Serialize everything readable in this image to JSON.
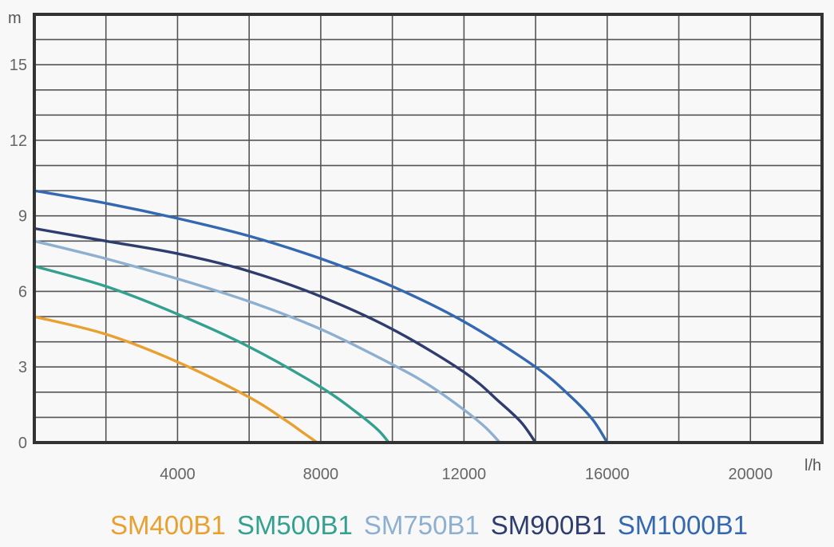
{
  "chart_data": {
    "type": "line",
    "xlabel": "l/h",
    "ylabel": "m",
    "xlim": [
      0,
      22000
    ],
    "ylim": [
      0,
      17
    ],
    "x_ticks": [
      4000,
      8000,
      12000,
      16000,
      20000
    ],
    "x_tick_labels": [
      "4000",
      "8000",
      "12000",
      "16000",
      "20000"
    ],
    "y_ticks": [
      0,
      3,
      6,
      9,
      12,
      15
    ],
    "y_tick_labels": [
      "0",
      "3",
      "6",
      "9",
      "12",
      "15"
    ],
    "grid": true,
    "legend_position": "bottom",
    "series": [
      {
        "name": "SM400B1",
        "color": "#e8a030",
        "x": [
          0,
          2000,
          4000,
          6000,
          7000,
          7500,
          7900
        ],
        "y": [
          5.0,
          4.3,
          3.2,
          1.8,
          0.9,
          0.4,
          0
        ]
      },
      {
        "name": "SM500B1",
        "color": "#34a090",
        "x": [
          0,
          2000,
          4000,
          6000,
          8000,
          9000,
          9600,
          9900
        ],
        "y": [
          7.0,
          6.2,
          5.1,
          3.8,
          2.2,
          1.2,
          0.5,
          0
        ]
      },
      {
        "name": "SM750B1",
        "color": "#8eb0d0",
        "x": [
          0,
          2000,
          4000,
          6000,
          8000,
          10000,
          11000,
          12000,
          12600,
          13000
        ],
        "y": [
          8.0,
          7.3,
          6.5,
          5.6,
          4.5,
          3.1,
          2.3,
          1.3,
          0.6,
          0
        ]
      },
      {
        "name": "SM900B1",
        "color": "#2e3d6e",
        "x": [
          0,
          2000,
          4000,
          6000,
          8000,
          10000,
          12000,
          13000,
          13600,
          14000
        ],
        "y": [
          8.5,
          8.0,
          7.5,
          6.8,
          5.8,
          4.5,
          2.8,
          1.6,
          0.8,
          0
        ]
      },
      {
        "name": "SM1000B1",
        "color": "#3468b0",
        "x": [
          0,
          2000,
          4000,
          6000,
          8000,
          10000,
          12000,
          14000,
          15000,
          15600,
          16000
        ],
        "y": [
          10.0,
          9.5,
          8.9,
          8.2,
          7.3,
          6.2,
          4.8,
          3.0,
          1.8,
          0.9,
          0
        ]
      }
    ]
  }
}
